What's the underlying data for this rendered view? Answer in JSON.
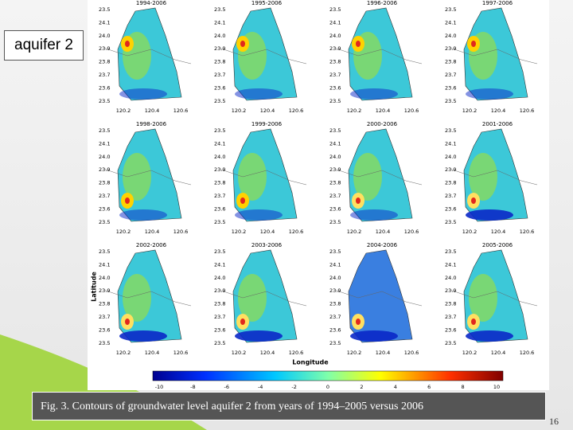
{
  "label": "aquifer 2",
  "panels": [
    "1994-2006",
    "1995-2006",
    "1996-2006",
    "1997-2006",
    "1998-2006",
    "1999-2006",
    "2000-2006",
    "2001-2006",
    "2002-2006",
    "2003-2006",
    "2004-2006",
    "2005-2006"
  ],
  "lat_ticks": [
    "23.5",
    "24.1",
    "24.0",
    "23.9",
    "23.8",
    "23.7",
    "23.6",
    "23.5"
  ],
  "lon_ticks": [
    "120.2",
    "120.4",
    "120.6"
  ],
  "y_axis_label": "Latitude",
  "x_axis_label": "Longitude",
  "colorbar_ticks": [
    "-10",
    "-8",
    "-6",
    "-4",
    "-2",
    "0",
    "2",
    "4",
    "6",
    "8",
    "10"
  ],
  "caption": "Fig. 3. Contours of groundwater level aquifer 2 from years of 1994–2005 versus 2006",
  "page_number": "16"
}
